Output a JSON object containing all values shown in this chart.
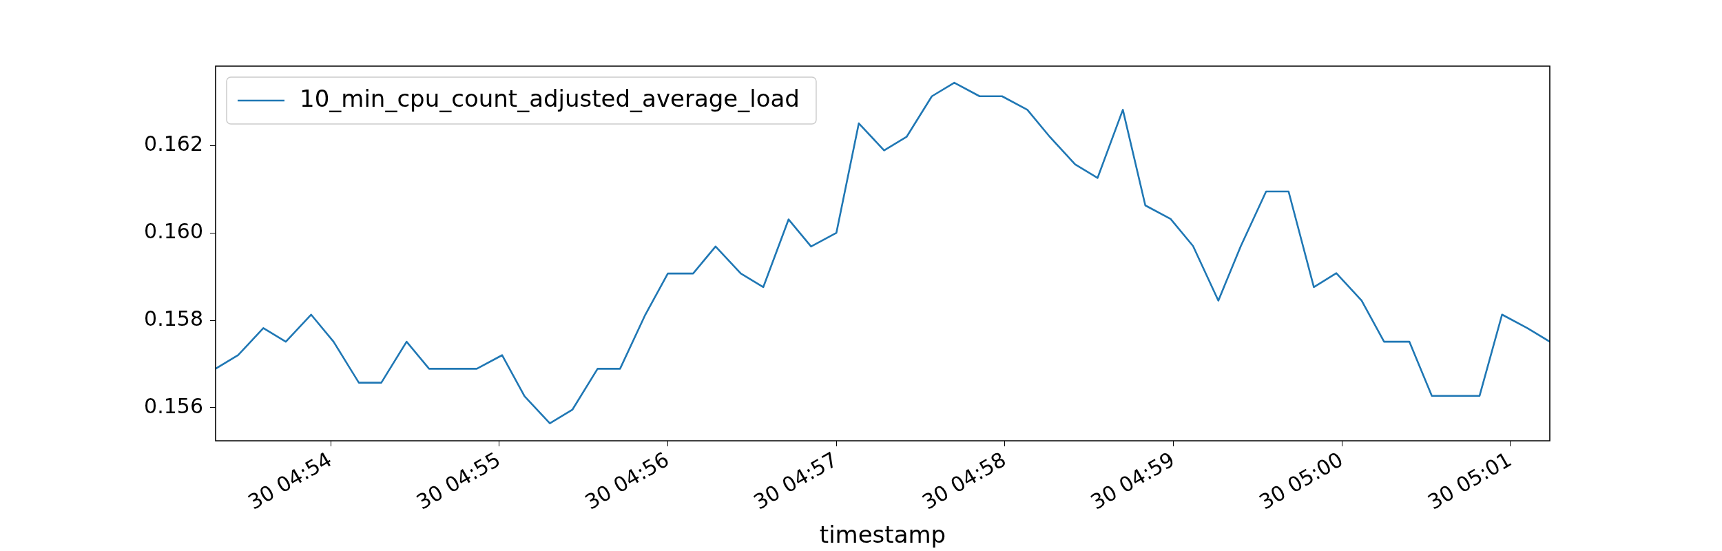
{
  "chart_data": {
    "type": "line",
    "xlabel": "timestamp",
    "legend": "top left",
    "marker": "none",
    "line_style": "solid",
    "grid": false,
    "xlim": [
      "--01-30T04:53:19",
      "--01-30T05:01:14"
    ],
    "ylim": [
      0.15524,
      0.16382
    ],
    "xticks": [
      {
        "value": "--01-30T04:54",
        "label": "30 04:54"
      },
      {
        "value": "--01-30T04:55",
        "label": "30 04:55"
      },
      {
        "value": "--01-30T04:56",
        "label": "30 04:56"
      },
      {
        "value": "--01-30T04:57",
        "label": "30 04:57"
      },
      {
        "value": "--01-30T04:58",
        "label": "30 04:58"
      },
      {
        "value": "--01-30T04:59",
        "label": "30 04:59"
      },
      {
        "value": "--01-30T05:00",
        "label": "30 05:00"
      },
      {
        "value": "--01-30T05:01",
        "label": "30 05:01"
      }
    ],
    "yticks": [
      {
        "value": 0.156,
        "label": "0.156"
      },
      {
        "value": 0.158,
        "label": "0.158"
      },
      {
        "value": 0.16,
        "label": "0.160"
      },
      {
        "value": 0.162,
        "label": "0.162"
      }
    ],
    "x": [
      "--01-30T04:53:19",
      "--01-30T04:53:27",
      "--01-30T04:53:36",
      "--01-30T04:53:44",
      "--01-30T04:53:53",
      "--01-30T04:54:01",
      "--01-30T04:54:10",
      "--01-30T04:54:18",
      "--01-30T04:54:27",
      "--01-30T04:54:35",
      "--01-30T04:54:44",
      "--01-30T04:54:52",
      "--01-30T04:55:01",
      "--01-30T04:55:09",
      "--01-30T04:55:18",
      "--01-30T04:55:26",
      "--01-30T04:55:35",
      "--01-30T04:55:43",
      "--01-30T04:55:52",
      "--01-30T04:56:00",
      "--01-30T04:56:09",
      "--01-30T04:56:17",
      "--01-30T04:56:26",
      "--01-30T04:56:34",
      "--01-30T04:56:43",
      "--01-30T04:56:51",
      "--01-30T04:57:00",
      "--01-30T04:57:08",
      "--01-30T04:57:17",
      "--01-30T04:57:25",
      "--01-30T04:57:34",
      "--01-30T04:57:42",
      "--01-30T04:57:51",
      "--01-30T04:57:59",
      "--01-30T04:58:08",
      "--01-30T04:58:16",
      "--01-30T04:58:25",
      "--01-30T04:58:33",
      "--01-30T04:58:42",
      "--01-30T04:58:50",
      "--01-30T04:58:59",
      "--01-30T04:59:07",
      "--01-30T04:59:16",
      "--01-30T04:59:24",
      "--01-30T04:59:33",
      "--01-30T04:59:41",
      "--01-30T04:59:50",
      "--01-30T04:59:58",
      "--01-30T05:00:07",
      "--01-30T05:00:15",
      "--01-30T05:00:24",
      "--01-30T05:00:32",
      "--01-30T05:00:40",
      "--01-30T05:00:49",
      "--01-30T05:00:57",
      "--01-30T05:01:06",
      "--01-30T05:01:14"
    ],
    "series": [
      {
        "name": "10_min_cpu_count_adjusted_average_load",
        "color": "#1f77b4",
        "values": [
          0.15689,
          0.1572,
          0.15782,
          0.15751,
          0.15813,
          0.15751,
          0.15657,
          0.15657,
          0.15751,
          0.15689,
          0.15689,
          0.15689,
          0.1572,
          0.15626,
          0.15564,
          0.15595,
          0.15689,
          0.15689,
          0.15813,
          0.15907,
          0.15907,
          0.15969,
          0.15907,
          0.15876,
          0.16031,
          0.15969,
          0.16,
          0.16251,
          0.16189,
          0.1622,
          0.16313,
          0.16344,
          0.16313,
          0.16313,
          0.16282,
          0.1622,
          0.16157,
          0.16126,
          0.16282,
          0.16063,
          0.16032,
          0.1597,
          0.15845,
          0.1597,
          0.16095,
          0.16095,
          0.15876,
          0.15908,
          0.15845,
          0.15751,
          0.15751,
          0.15627,
          0.15627,
          0.15627,
          0.15813,
          0.15782,
          0.15751
        ]
      }
    ]
  }
}
